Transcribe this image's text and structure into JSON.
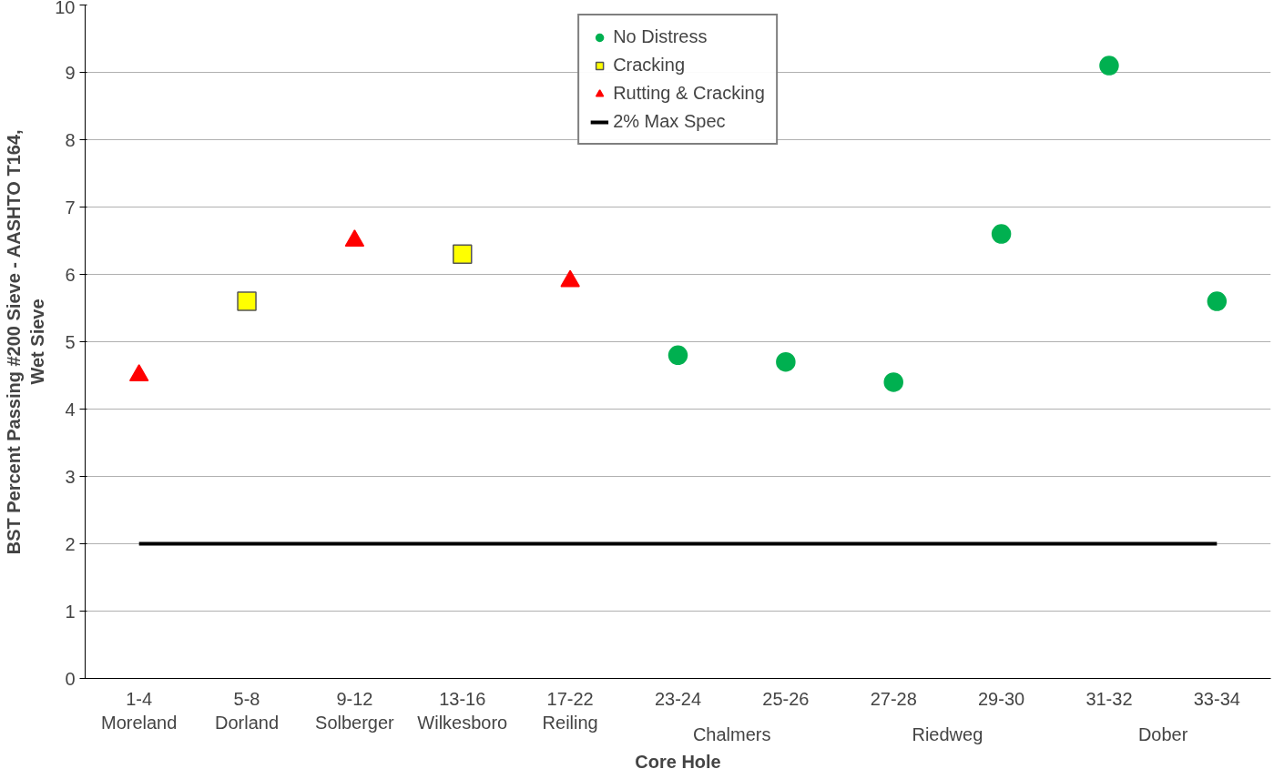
{
  "chart_data": {
    "type": "scatter",
    "xlabel": "Core Hole",
    "ylabel": "BST Percent Passing #200 Sieve - AASHTO T164,\nWet Sieve",
    "categories": [
      "1-4\nMoreland",
      "5-8\nDorland",
      "9-12\nSolberger",
      "13-16\nWilkesboro",
      "17-22\nReiling",
      "23-24",
      "25-26",
      "27-28",
      "29-30",
      "31-32",
      "33-34"
    ],
    "series": [
      {
        "name": "No Distress",
        "marker": "circle",
        "color": "#00b050",
        "x": [
          "23-24",
          "25-26",
          "27-28",
          "29-30",
          "31-32",
          "33-34"
        ],
        "values": [
          4.8,
          4.7,
          4.4,
          6.6,
          9.1,
          5.6
        ]
      },
      {
        "name": "Cracking",
        "marker": "square",
        "color": "#ffff00",
        "x": [
          "5-8\nDorland",
          "13-16\nWilkesboro"
        ],
        "values": [
          5.6,
          6.3
        ]
      },
      {
        "name": "Rutting & Cracking",
        "marker": "triangle",
        "color": "#ff0000",
        "x": [
          "1-4\nMoreland",
          "9-12\nSolberger",
          "17-22\nReiling"
        ],
        "values": [
          4.5,
          6.5,
          5.9
        ]
      },
      {
        "name": "2% Max Spec",
        "type": "line",
        "line_style": "solid",
        "color": "#000000",
        "x": [
          "1-4\nMoreland",
          "33-34"
        ],
        "values": [
          2,
          2
        ]
      }
    ],
    "annotations": [
      "Chalmers",
      "Riedweg",
      "Dober"
    ],
    "ylim": [
      0,
      10
    ],
    "yticks": [
      0,
      1,
      2,
      3,
      4,
      5,
      6,
      7,
      8,
      9,
      10
    ],
    "grid": "y",
    "legend": "top"
  }
}
